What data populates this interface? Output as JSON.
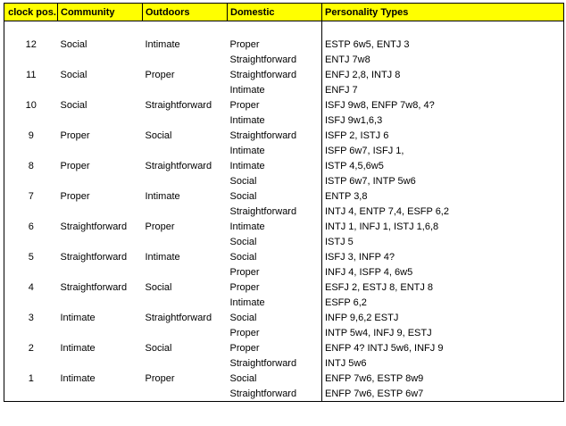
{
  "table": {
    "header": [
      "clock pos.",
      "Community",
      "Outdoors",
      "Domestic",
      "Personality Types"
    ],
    "groups": [
      {
        "clock": "12",
        "community": "Social",
        "outdoors": "Intimate",
        "rows": [
          [
            "Proper",
            "ESTP 6w5, ENTJ 3"
          ],
          [
            "Straightforward",
            "ENTJ 7w8"
          ]
        ]
      },
      {
        "clock": "11",
        "community": "Social",
        "outdoors": "Proper",
        "rows": [
          [
            "Straightforward",
            "ENFJ 2,8, INTJ 8"
          ],
          [
            "Intimate",
            "ENFJ 7"
          ]
        ]
      },
      {
        "clock": "10",
        "community": "Social",
        "outdoors": "Straightforward",
        "rows": [
          [
            "Proper",
            "ISFJ 9w8, ENFP 7w8, 4?"
          ],
          [
            "Intimate",
            "ISFJ 9w1,6,3"
          ]
        ]
      },
      {
        "clock": "9",
        "community": "Proper",
        "outdoors": "Social",
        "rows": [
          [
            "Straightforward",
            "ISFP 2, ISTJ 6"
          ],
          [
            "Intimate",
            "ISFP 6w7, ISFJ 1,"
          ]
        ]
      },
      {
        "clock": "8",
        "community": "Proper",
        "outdoors": "Straightforward",
        "rows": [
          [
            "Intimate",
            "ISTP 4,5,6w5"
          ],
          [
            "Social",
            "ISTP 6w7, INTP 5w6"
          ]
        ]
      },
      {
        "clock": "7",
        "community": "Proper",
        "outdoors": "Intimate",
        "rows": [
          [
            "Social",
            "ENTP 3,8"
          ],
          [
            "Straightforward",
            "INTJ 4, ENTP 7,4,  ESFP 6,2"
          ]
        ]
      },
      {
        "clock": "6",
        "community": "Straightforward",
        "outdoors": "Proper",
        "rows": [
          [
            "Intimate",
            "INTJ 1, INFJ 1, ISTJ 1,6,8"
          ],
          [
            "Social",
            "ISTJ 5"
          ]
        ]
      },
      {
        "clock": "5",
        "community": "Straightforward",
        "outdoors": "Intimate",
        "rows": [
          [
            "Social",
            "ISFJ 3, INFP 4?"
          ],
          [
            "Proper",
            "INFJ 4, ISFP 4, 6w5"
          ]
        ]
      },
      {
        "clock": "4",
        "community": "Straightforward",
        "outdoors": "Social",
        "rows": [
          [
            "Proper",
            "ESFJ 2, ESTJ 8, ENTJ 8"
          ],
          [
            "Intimate",
            "ESFP 6,2"
          ]
        ]
      },
      {
        "clock": "3",
        "community": "Intimate",
        "outdoors": "Straightforward",
        "rows": [
          [
            "Social",
            "INFP 9,6,2  ESTJ"
          ],
          [
            "Proper",
            "INTP 5w4, INFJ 9, ESTJ"
          ]
        ]
      },
      {
        "clock": "2",
        "community": "Intimate",
        "outdoors": "Social",
        "rows": [
          [
            "Proper",
            "ENFP 4? INTJ 5w6, INFJ 9"
          ],
          [
            "Straightforward",
            "INTJ 5w6"
          ]
        ]
      },
      {
        "clock": "1",
        "community": "Intimate",
        "outdoors": "Proper",
        "rows": [
          [
            "Social",
            "ENFP 7w6, ESTP 8w9"
          ],
          [
            "Straightforward",
            "ENFP 7w6, ESTP 6w7"
          ]
        ]
      }
    ]
  }
}
